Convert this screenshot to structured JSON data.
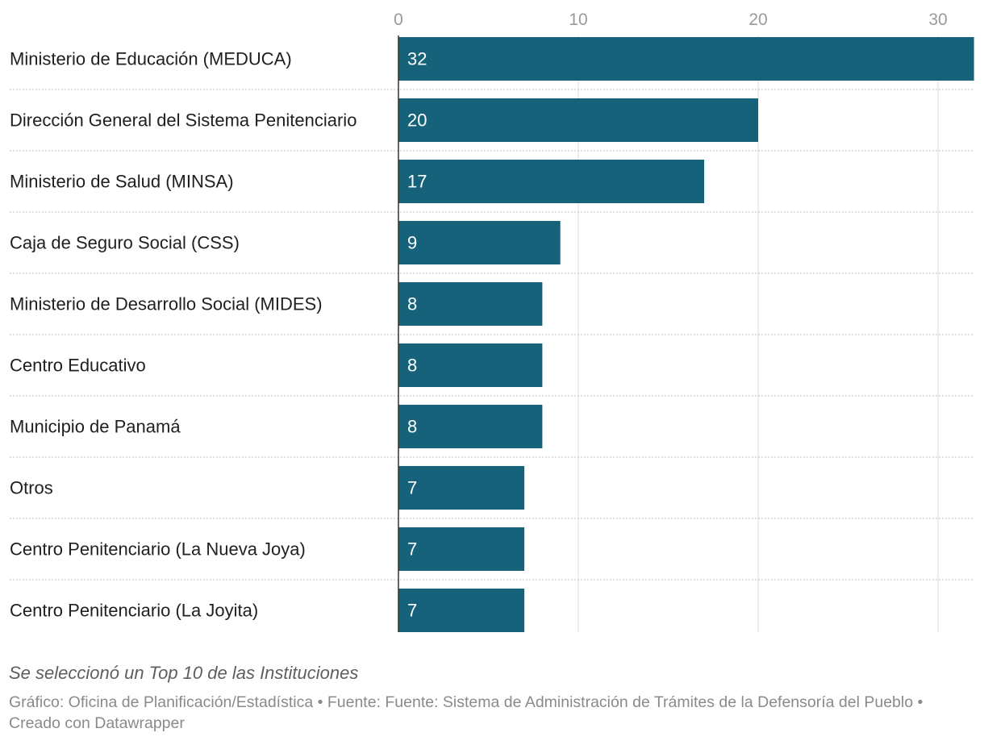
{
  "chart_data": {
    "type": "bar",
    "orientation": "horizontal",
    "categories": [
      "Ministerio de Educación (MEDUCA)",
      "Dirección General del Sistema Penitenciario",
      "Ministerio de Salud (MINSA)",
      "Caja de Seguro Social (CSS)",
      "Ministerio de Desarrollo Social (MIDES)",
      "Centro Educativo",
      "Municipio de Panamá",
      "Otros",
      "Centro Penitenciario (La Nueva Joya)",
      "Centro Penitenciario (La Joyita)"
    ],
    "values": [
      32,
      20,
      17,
      9,
      8,
      8,
      8,
      7,
      7,
      7
    ],
    "xticks": [
      0,
      10,
      20,
      30
    ],
    "xlim": [
      0,
      32
    ],
    "title": "",
    "xlabel": "",
    "ylabel": "",
    "grid": true,
    "legend": "none",
    "bar_color": "#17627b",
    "bar_label_color": "#ffffff",
    "tick_color": "#9a9a9a",
    "grid_color": "#dcdcdc"
  },
  "footer": {
    "note": "Se seleccionó un Top 10 de las Instituciones",
    "credits": "Gráfico: Oficina de Planificación/Estadística • Fuente: Fuente: Sistema de Administración de Trámites de la Defensoría del Pueblo • Creado con Datawrapper"
  }
}
